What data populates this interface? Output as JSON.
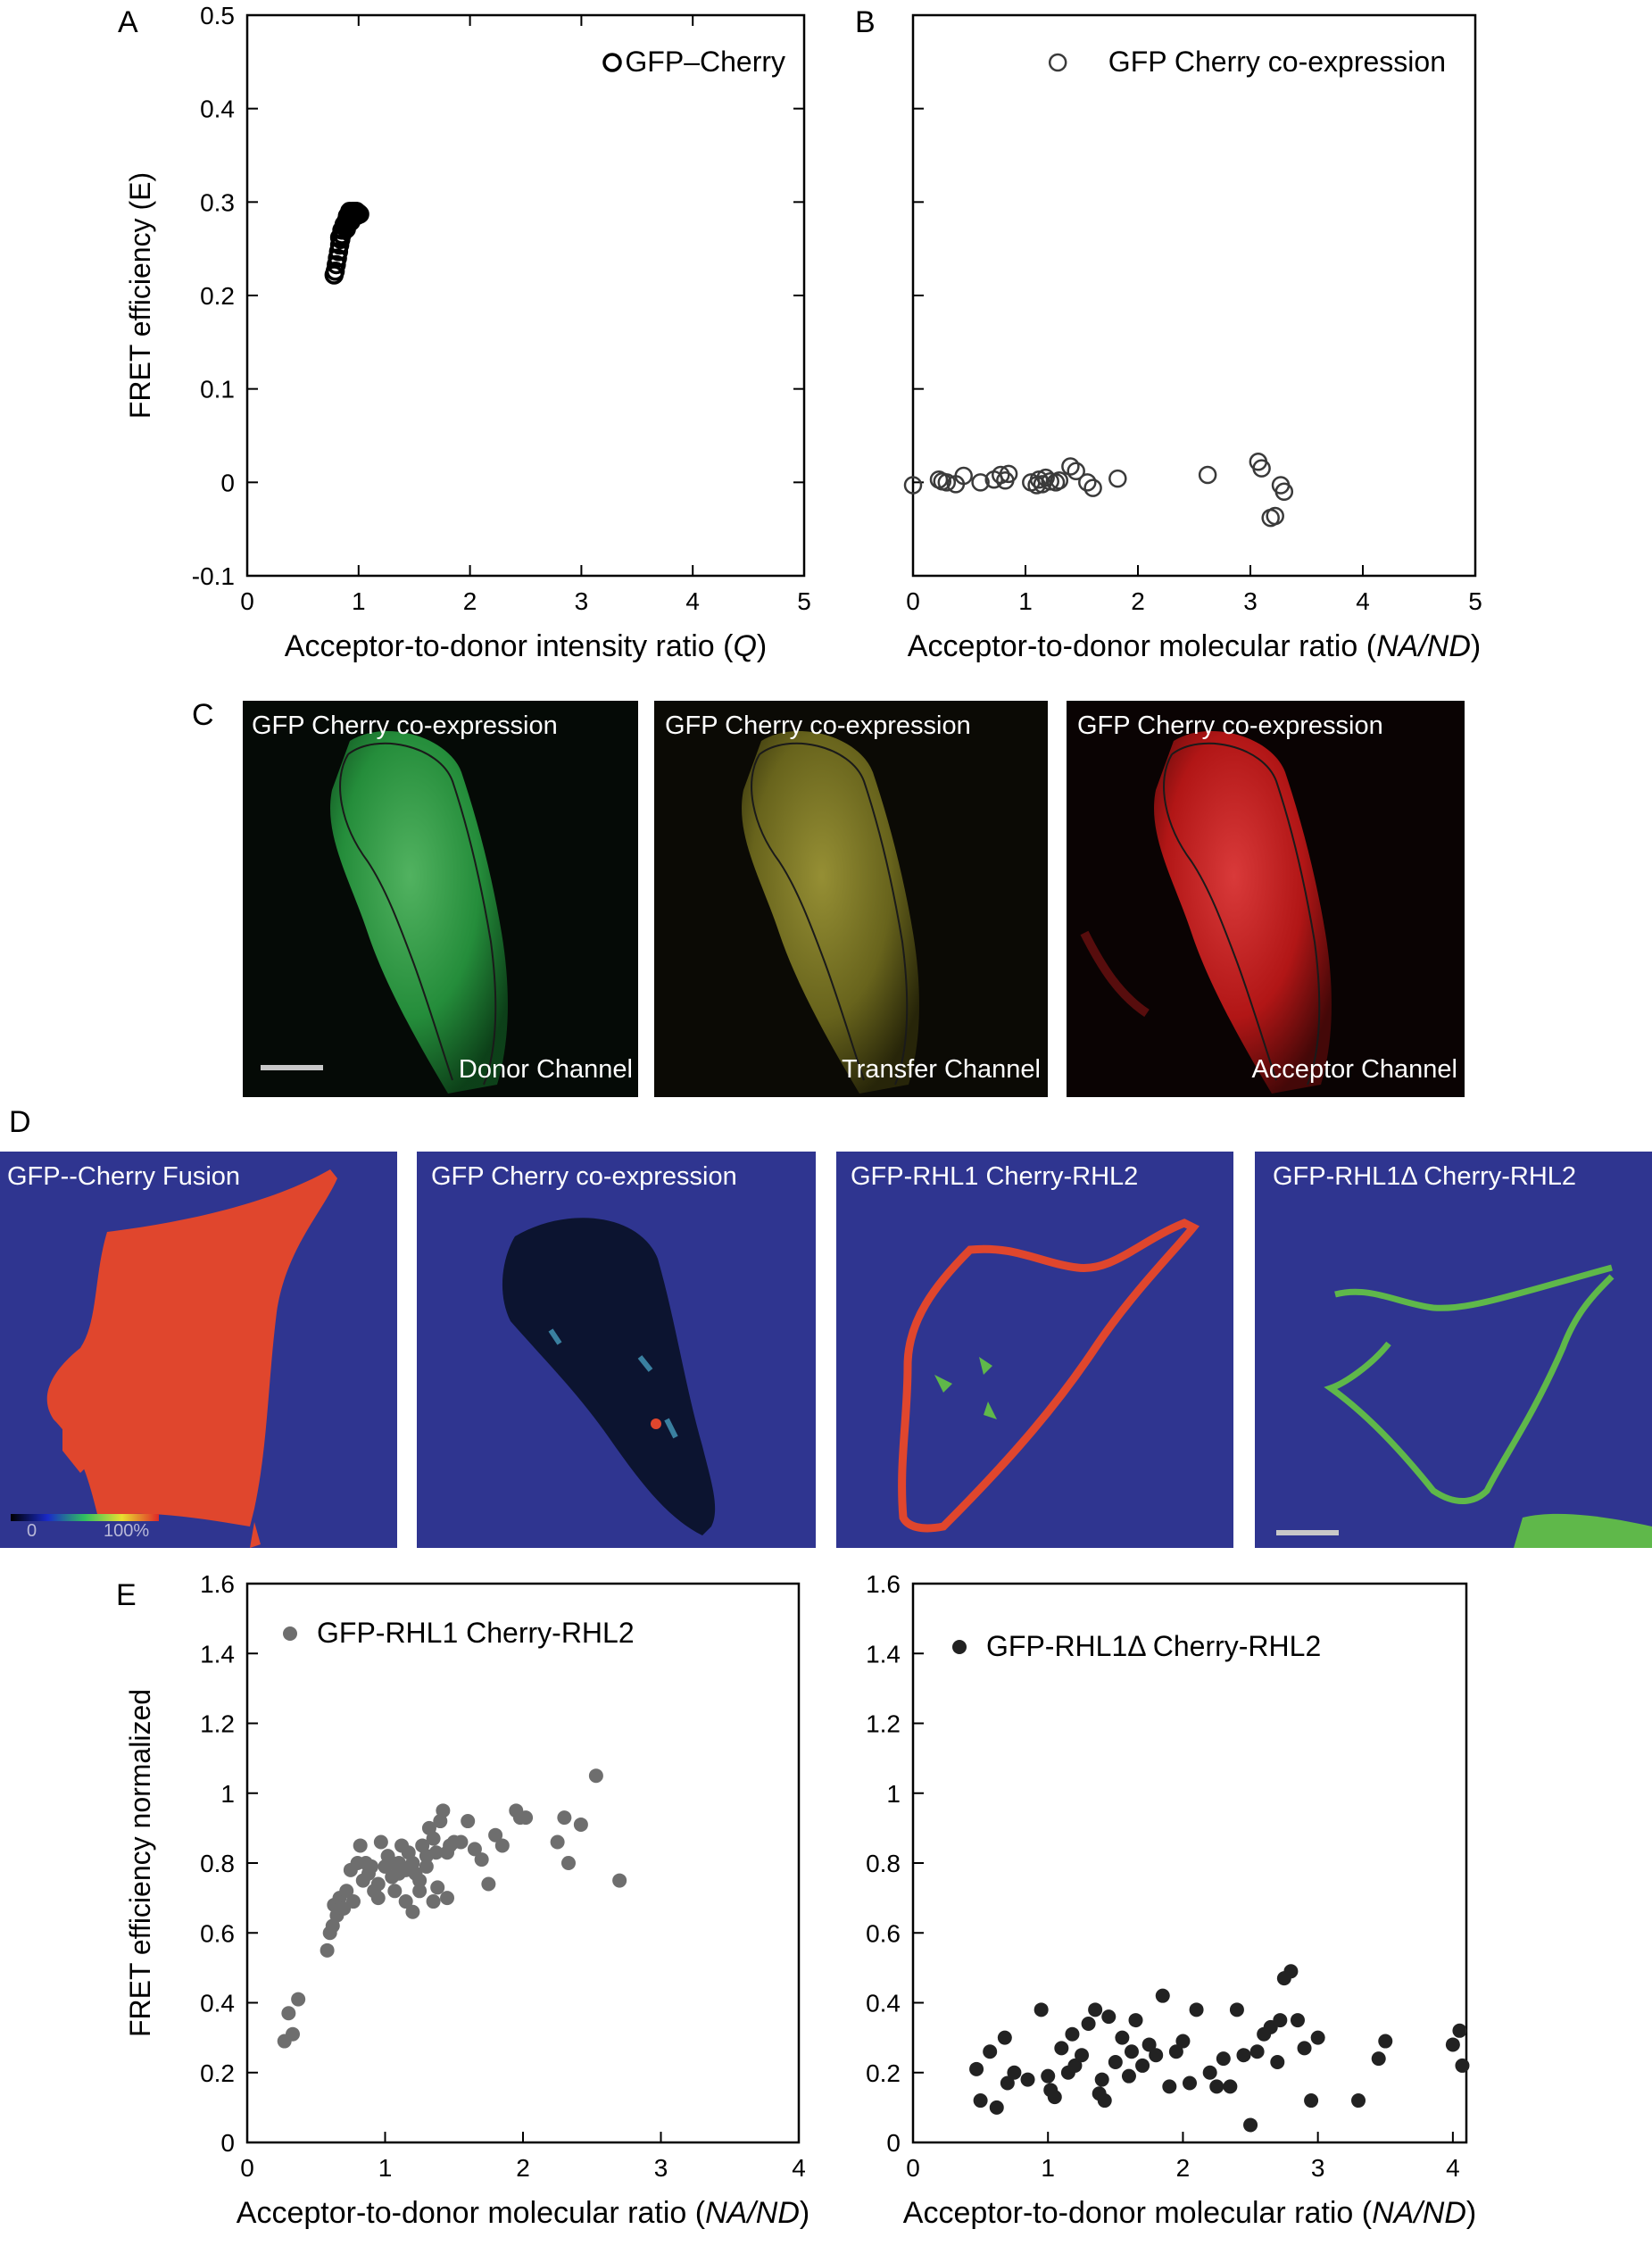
{
  "panel_letters": {
    "A": "A",
    "B": "B",
    "C": "C",
    "D": "D",
    "E": "E"
  },
  "colors": {
    "axis": "#000000",
    "markerA": "#000000",
    "markerB": "#3a3a3a",
    "markerE1": "#6e6e6e",
    "markerE2": "#222222",
    "mapBackground": "#2f3590",
    "fretHigh": "#e8442c",
    "fretMid": "#5fb84a",
    "gfpGreen": "#26b24a",
    "transferYellow": "#c8c232",
    "cherryRed": "#d41f1f"
  },
  "chart_data": [
    {
      "id": "A",
      "type": "scatter",
      "xlabel": "Acceptor-to-donor intensity ratio",
      "xlabel_var": "Q",
      "ylabel": "FRET efficiency (E)",
      "xlim": [
        0,
        5
      ],
      "ylim": [
        -0.1,
        0.5
      ],
      "xticks": [
        "0",
        "1",
        "2",
        "3",
        "4",
        "5"
      ],
      "yticks": [
        "-0.1",
        "0",
        "0.1",
        "0.2",
        "0.3",
        "0.4",
        "0.5"
      ],
      "legend": "GFP–Cherry",
      "legend_position": "top-right",
      "series": [
        {
          "name": "GFP–Cherry",
          "marker": "open-circle",
          "x": [
            0.78,
            0.79,
            0.8,
            0.81,
            0.82,
            0.83,
            0.84,
            0.85,
            0.86,
            0.87,
            0.88,
            0.89,
            0.9,
            0.91,
            0.92,
            0.93,
            0.94,
            0.95,
            0.96,
            0.97,
            0.98,
            0.99,
            1.0,
            1.01,
            0.85,
            0.87,
            0.9,
            0.92,
            0.95,
            0.97,
            0.83,
            0.89,
            0.93,
            0.96,
            0.99
          ],
          "y": [
            0.222,
            0.226,
            0.233,
            0.24,
            0.247,
            0.254,
            0.26,
            0.265,
            0.27,
            0.274,
            0.277,
            0.28,
            0.282,
            0.284,
            0.286,
            0.287,
            0.288,
            0.289,
            0.29,
            0.29,
            0.29,
            0.289,
            0.288,
            0.287,
            0.27,
            0.276,
            0.285,
            0.29,
            0.29,
            0.29,
            0.262,
            0.271,
            0.279,
            0.284,
            0.286
          ]
        }
      ]
    },
    {
      "id": "B",
      "type": "scatter",
      "xlabel": "Acceptor-to-donor molecular ratio",
      "xlabel_var": "NA/ND",
      "ylabel": "",
      "xlim": [
        0,
        5
      ],
      "ylim": [
        -0.1,
        0.5
      ],
      "xticks": [
        "0",
        "1",
        "2",
        "3",
        "4",
        "5"
      ],
      "legend": "GFP Cherry co-expression",
      "legend_position": "top-right",
      "series": [
        {
          "name": "GFP Cherry co-expression",
          "marker": "open-circle",
          "x": [
            0.0,
            0.23,
            0.26,
            0.3,
            0.38,
            0.45,
            0.6,
            0.72,
            0.78,
            0.82,
            0.85,
            1.05,
            1.1,
            1.12,
            1.15,
            1.18,
            1.22,
            1.27,
            1.3,
            1.4,
            1.45,
            1.55,
            1.6,
            1.82,
            2.62,
            3.07,
            3.1,
            3.18,
            3.22,
            3.27,
            3.3
          ],
          "y": [
            -0.003,
            0.003,
            0.001,
            0.0,
            -0.002,
            0.007,
            0.0,
            0.003,
            0.008,
            0.002,
            0.009,
            0.0,
            -0.003,
            0.003,
            -0.002,
            0.005,
            0.001,
            0.0,
            0.002,
            0.017,
            0.012,
            0.0,
            -0.006,
            0.004,
            0.008,
            0.022,
            0.015,
            -0.038,
            -0.036,
            -0.003,
            -0.01
          ]
        }
      ]
    },
    {
      "id": "E-left",
      "type": "scatter",
      "xlabel": "Acceptor-to-donor molecular ratio",
      "xlabel_var": "NA/ND",
      "ylabel": "FRET efficiency normalized",
      "xlim": [
        0,
        4
      ],
      "ylim": [
        0,
        1.6
      ],
      "xticks": [
        "0",
        "1",
        "2",
        "3",
        "4"
      ],
      "yticks": [
        "0",
        "0.2",
        "0.4",
        "0.6",
        "0.8",
        "1",
        "1.2",
        "1.4",
        "1.6"
      ],
      "legend": "GFP-RHL1 Cherry-RHL2",
      "legend_position": "top-left",
      "series": [
        {
          "name": "GFP-RHL1 Cherry-RHL2",
          "marker": "filled-circle",
          "x": [
            0.27,
            0.3,
            0.33,
            0.37,
            0.58,
            0.6,
            0.62,
            0.63,
            0.65,
            0.67,
            0.7,
            0.72,
            0.75,
            0.77,
            0.8,
            0.82,
            0.84,
            0.86,
            0.9,
            0.92,
            0.95,
            0.97,
            1.0,
            1.02,
            1.05,
            1.07,
            1.1,
            1.12,
            1.15,
            1.17,
            1.2,
            1.22,
            1.25,
            1.27,
            1.3,
            1.32,
            1.35,
            1.37,
            1.4,
            1.42,
            1.45,
            1.47,
            1.5,
            1.55,
            1.6,
            1.65,
            1.7,
            1.75,
            1.8,
            1.85,
            1.95,
            1.98,
            2.02,
            2.25,
            2.3,
            2.33,
            2.42,
            2.53,
            2.7,
            1.05,
            1.15,
            1.25,
            1.35,
            0.95,
            1.1,
            1.3,
            1.45,
            0.88,
            1.2,
            1.38
          ],
          "y": [
            0.29,
            0.37,
            0.31,
            0.41,
            0.55,
            0.6,
            0.62,
            0.68,
            0.65,
            0.7,
            0.67,
            0.72,
            0.78,
            0.69,
            0.8,
            0.85,
            0.75,
            0.8,
            0.79,
            0.72,
            0.74,
            0.86,
            0.79,
            0.82,
            0.8,
            0.72,
            0.8,
            0.85,
            0.78,
            0.83,
            0.66,
            0.77,
            0.75,
            0.85,
            0.82,
            0.9,
            0.87,
            0.83,
            0.92,
            0.95,
            0.83,
            0.85,
            0.86,
            0.86,
            0.92,
            0.84,
            0.81,
            0.74,
            0.88,
            0.85,
            0.95,
            0.93,
            0.93,
            0.86,
            0.93,
            0.8,
            0.91,
            1.05,
            0.75,
            0.76,
            0.69,
            0.72,
            0.69,
            0.7,
            0.77,
            0.79,
            0.7,
            0.77,
            0.8,
            0.73
          ]
        }
      ]
    },
    {
      "id": "E-right",
      "type": "scatter",
      "xlabel": "Acceptor-to-donor molecular ratio",
      "xlabel_var": "NA/ND",
      "ylabel": "",
      "xlim": [
        0,
        4.1
      ],
      "ylim": [
        0,
        1.6
      ],
      "xticks": [
        "0",
        "1",
        "2",
        "3",
        "4"
      ],
      "yticks": [
        "0",
        "0.2",
        "0.4",
        "0.6",
        "0.8",
        "1",
        "1.2",
        "1.4",
        "1.6"
      ],
      "legend": "GFP-RHL1Δ  Cherry-RHL2",
      "legend_position": "top-left",
      "series": [
        {
          "name": "GFP-RHL1Δ Cherry-RHL2",
          "marker": "filled-circle",
          "x": [
            0.47,
            0.5,
            0.57,
            0.62,
            0.68,
            0.7,
            0.75,
            0.85,
            0.95,
            1.0,
            1.02,
            1.05,
            1.1,
            1.15,
            1.18,
            1.2,
            1.25,
            1.3,
            1.35,
            1.38,
            1.4,
            1.42,
            1.45,
            1.5,
            1.55,
            1.6,
            1.62,
            1.65,
            1.7,
            1.75,
            1.8,
            1.85,
            1.9,
            1.95,
            2.0,
            2.05,
            2.1,
            2.2,
            2.25,
            2.3,
            2.35,
            2.4,
            2.45,
            2.5,
            2.55,
            2.6,
            2.65,
            2.7,
            2.72,
            2.75,
            2.8,
            2.85,
            2.9,
            2.95,
            3.0,
            3.3,
            3.45,
            3.5,
            4.0,
            4.05,
            4.07
          ],
          "y": [
            0.21,
            0.12,
            0.26,
            0.1,
            0.3,
            0.17,
            0.2,
            0.18,
            0.38,
            0.19,
            0.15,
            0.13,
            0.27,
            0.2,
            0.31,
            0.22,
            0.25,
            0.34,
            0.38,
            0.14,
            0.18,
            0.12,
            0.36,
            0.23,
            0.3,
            0.19,
            0.26,
            0.35,
            0.22,
            0.28,
            0.25,
            0.42,
            0.16,
            0.26,
            0.29,
            0.17,
            0.38,
            0.2,
            0.16,
            0.24,
            0.16,
            0.38,
            0.25,
            0.05,
            0.26,
            0.31,
            0.33,
            0.23,
            0.35,
            0.47,
            0.49,
            0.35,
            0.27,
            0.12,
            0.3,
            0.12,
            0.24,
            0.29,
            0.28,
            0.32,
            0.22
          ]
        }
      ]
    }
  ],
  "panel_c": {
    "images": [
      {
        "title": "GFP Cherry co-expression",
        "channel": "Donor Channel"
      },
      {
        "title": "GFP Cherry co-expression",
        "channel": "Transfer Channel"
      },
      {
        "title": "GFP Cherry co-expression",
        "channel": "Acceptor Channel"
      }
    ]
  },
  "panel_d": {
    "images": [
      {
        "title": "GFP--Cherry Fusion"
      },
      {
        "title": "GFP Cherry co-expression"
      },
      {
        "title": "GFP-RHL1  Cherry-RHL2"
      },
      {
        "title": "GFP-RHL1Δ Cherry-RHL2"
      }
    ],
    "colorbar": {
      "min_label": "0",
      "max_label": "100%"
    }
  }
}
